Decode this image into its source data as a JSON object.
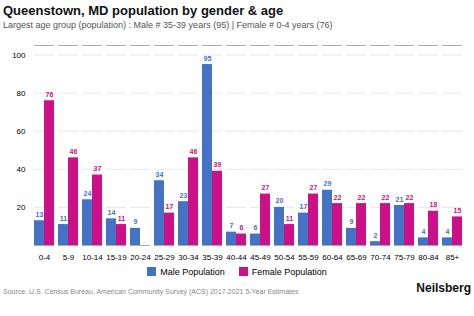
{
  "chart_data": {
    "type": "bar",
    "title": "Queenstown, MD population by gender & age",
    "subtitle": "Largest age group (population) : Male # 35-39 years (95) | Female # 0-4 years (76)",
    "categories": [
      "0-4",
      "5-9",
      "10-14",
      "15-19",
      "20-24",
      "25-29",
      "30-34",
      "35-39",
      "40-44",
      "45-49",
      "50-54",
      "55-59",
      "60-64",
      "65-69",
      "70-74",
      "75-79",
      "80-84",
      "85+"
    ],
    "series": [
      {
        "name": "Male Population",
        "color": "#4472C4",
        "values": [
          13,
          11,
          24,
          14,
          9,
          34,
          23,
          95,
          7,
          6,
          20,
          17,
          29,
          9,
          2,
          21,
          4,
          4
        ],
        "value_labels": [
          "13",
          "11",
          "24",
          "14",
          "9",
          "34",
          "23",
          "95",
          "7",
          "6",
          "20",
          "17",
          "29",
          "9",
          "2",
          "21",
          "4",
          "4"
        ]
      },
      {
        "name": "Female Population",
        "color": "#CC1188",
        "values": [
          76,
          46,
          37,
          11,
          0,
          17,
          46,
          39,
          6,
          27,
          11,
          27,
          22,
          22,
          22,
          22,
          18,
          15
        ],
        "value_labels": [
          "76",
          "46",
          "37",
          "11",
          null,
          "17",
          "46",
          "39",
          "6",
          "27",
          "11",
          "27",
          "22",
          "22",
          "22",
          "22",
          "18",
          "15"
        ]
      }
    ],
    "ylim": [
      0,
      105
    ],
    "yticks": [
      20,
      40,
      60,
      80,
      100
    ],
    "grid": true,
    "legend": "bottom",
    "data_labels": true,
    "caption": "Source: U.S. Census Bureau, American Community Survey (ACS) 2017-2021 5-Year Estimates",
    "annotations": [
      "Neilsberg"
    ]
  }
}
